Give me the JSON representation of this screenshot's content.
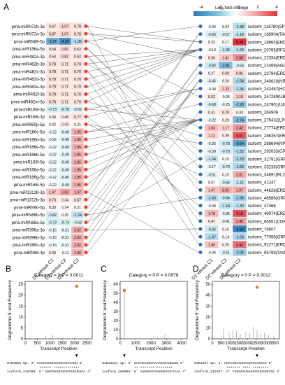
{
  "panel_a": {
    "letter": "A",
    "legend_title": "Log₂fold-change",
    "legend_ticks": [
      "-4",
      "-2",
      "0",
      "2",
      "4"
    ],
    "col_labels": [
      "D1 versus C1",
      "D2 versus C2",
      "D3 versus C3"
    ],
    "left_rows": [
      {
        "name": "pma-miRN72b-3p",
        "v": [
          "0.67",
          "1.07",
          "0.78"
        ]
      },
      {
        "name": "pma-miRN72a-3p",
        "v": [
          "0.87",
          "1.07",
          "0.78"
        ]
      },
      {
        "name": "pma-miRN89-5p",
        "v": [
          "-3.24",
          "-4.24",
          "-1.36"
        ]
      },
      {
        "name": "pma-miR156a-5p",
        "v": [
          "0.54",
          "0.82",
          "0.62"
        ]
      },
      {
        "name": "pma-miR482a-3p",
        "v": [
          "0.54",
          "0.82",
          "0.62"
        ]
      },
      {
        "name": "pma-miR482b-3p",
        "v": [
          "0.78",
          "0.71",
          "0.70"
        ]
      },
      {
        "name": "pma-miR482c-3p",
        "v": [
          "0.78",
          "0.71",
          "0.70"
        ]
      },
      {
        "name": "pma-miR482d-3p",
        "v": [
          "0.78",
          "0.71",
          "0.70"
        ]
      },
      {
        "name": "pma-miR482e-3p",
        "v": [
          "0.78",
          "0.71",
          "0.70"
        ]
      },
      {
        "name": "pma-miR482f-3p",
        "v": [
          "0.78",
          "0.71",
          "0.70"
        ]
      },
      {
        "name": "pma-miR482m-3p",
        "v": [
          "0.78",
          "0.71",
          "0.70"
        ]
      },
      {
        "name": "pma-miR166i-3p",
        "v": [
          "-0.73",
          "-0.78",
          "-0.55"
        ]
      },
      {
        "name": "pma-miR166l-3p",
        "v": [
          "0.34",
          "0.48",
          "0.77"
        ]
      },
      {
        "name": "pma-miR950p-5p",
        "v": [
          "0.02",
          "0.43",
          "0.21"
        ]
      },
      {
        "name": "pma-miR166c-5p",
        "v": [
          "-0.22",
          "-0.49",
          "1.95"
        ]
      },
      {
        "name": "pma-miR166d-3p",
        "v": [
          "-0.22",
          "-0.49",
          "1.95"
        ]
      },
      {
        "name": "pma-miR166e-5p",
        "v": [
          "-0.22",
          "-0.49",
          "1.95"
        ]
      },
      {
        "name": "pma-miR166b-5p",
        "v": [
          "-0.22",
          "-0.49",
          "1.95"
        ]
      },
      {
        "name": "pma-miR166f-5p",
        "v": [
          "-0.22",
          "-0.49",
          "1.95"
        ]
      },
      {
        "name": "pma-miR166a-5p",
        "v": [
          "-0.22",
          "-0.49",
          "1.95"
        ]
      },
      {
        "name": "pma-miR166g-5p",
        "v": [
          "-0.22",
          "-0.49",
          "1.95"
        ]
      },
      {
        "name": "pma-miR166i-5p",
        "v": [
          "-0.22",
          "-0.49",
          "1.95"
        ]
      },
      {
        "name": "pma-miR1312b-3p",
        "v": [
          "1.47",
          "2.02",
          "1.97"
        ]
      },
      {
        "name": "pma-miR1312b-3p",
        "v": [
          "0.73",
          "0.34",
          "0.67"
        ]
      },
      {
        "name": "pma-miRN90-5p",
        "v": [
          "0.33",
          "0.14",
          "0.21"
        ]
      },
      {
        "name": "pma-miRN88b-5p",
        "v": [
          "-0.82",
          "0.25",
          "-1.24"
        ]
      },
      {
        "name": "pma-miRN88a-5p",
        "v": [
          "-0.73",
          "-0.74",
          "-0.58"
        ]
      },
      {
        "name": "pma-miR396a-3p",
        "v": [
          "-0.16",
          "-0.31",
          "2.02"
        ]
      },
      {
        "name": "pma-miR396b-3p",
        "v": [
          "-0.16",
          "-0.31",
          "2.02"
        ]
      },
      {
        "name": "pma-miR396c-3p",
        "v": [
          "-0.16",
          "-0.31",
          "2.02"
        ]
      },
      {
        "name": "pma-miRN88-3p",
        "v": [
          "0.30",
          "-0.11",
          "1.90"
        ]
      }
    ],
    "right_rows": [
      {
        "v": [
          "-0.04",
          "0.04",
          "-1.38"
        ],
        "name": "isoform_118780",
        "gene": "SPL12"
      },
      {
        "v": [
          "-0.65",
          "-0.57",
          "-1.18"
        ],
        "name": "isoform_166904",
        "gene": "TAO1"
      },
      {
        "v": [
          "0.22",
          "0.17",
          "5.34"
        ],
        "name": "isoform_18964",
        "gene": "ERD10"
      },
      {
        "v": [
          "-0.13",
          "-1.05",
          "-1.20"
        ],
        "name": "isoform_20765",
        "gene": "RFI2"
      },
      {
        "v": [
          "0.56",
          "1.41",
          "2.68"
        ],
        "name": "isoform_22334",
        "gene": "ERD10"
      },
      {
        "v": [
          "-0.92",
          "-2.81",
          "-0.53"
        ],
        "name": "isoform_22469",
        "gene": "AGCT"
      },
      {
        "v": [
          "0.27",
          "0.60",
          "0.86"
        ],
        "name": "isoform_23794",
        "gene": "ERD10"
      },
      {
        "v": [
          "-0.45",
          "0.26",
          "-1.54"
        ],
        "name": "isoform_240620",
        "gene": "NRAMP1"
      },
      {
        "v": [
          "-0.08",
          "1.23",
          "-1.34"
        ],
        "name": "isoform_242457",
        "gene": "HOX32"
      },
      {
        "v": [
          "0.52",
          "-0.04",
          "1.15"
        ],
        "name": "isoform_247289",
        "gene": "UBI1P"
      },
      {
        "v": [
          "-0.68",
          "-0.25",
          "-2.28"
        ],
        "name": "isoform_247901",
        "gene": "U86A2"
      },
      {
        "v": [
          "0.41",
          "0.70",
          "0.33"
        ],
        "name": "isoform_264908",
        "gene": ""
      },
      {
        "v": [
          "-0.22",
          "0.29",
          "-2.74"
        ],
        "name": "isoform_275432",
        "gene": "LPR2"
      },
      {
        "v": [
          "1.63",
          "1.17",
          "2.42"
        ],
        "name": "isoform_27774",
        "gene": "ERD10"
      },
      {
        "v": [
          "1.12",
          "0.39",
          "4.01"
        ],
        "name": "isoform_286357",
        "gene": "ERD10"
      },
      {
        "v": [
          "-0.26",
          "-0.79",
          "-3.54"
        ],
        "name": "isoform_288694",
        "gene": "NPF5.3"
      },
      {
        "v": [
          "-0.39",
          "-0.79",
          "-1.52"
        ],
        "name": "isoform_292633",
        "gene": "GRP2"
      },
      {
        "v": [
          "-1.04",
          "0.15",
          "-1.70"
        ],
        "name": "isoform_32791",
        "gene": "GRP2"
      },
      {
        "v": [
          "-0.17",
          "-0.70",
          "-1.60"
        ],
        "name": "isoform_33236",
        "gene": "GRP1"
      },
      {
        "v": [
          "-0.51",
          "0.15",
          "2.01"
        ],
        "name": "isoform_34691",
        "gene": "RL222"
      },
      {
        "v": [
          "0.07",
          "-0.66",
          "-1.11"
        ],
        "name": "isoform_41247",
        "gene": ""
      },
      {
        "v": [
          "1.47",
          "2.02",
          "1.97"
        ],
        "name": "isoform_44628",
        "gene": "ERD10"
      },
      {
        "v": [
          "-1.43",
          "-0.84",
          "-1.96"
        ],
        "name": "isoform_46586",
        "gene": "GRP2"
      },
      {
        "v": [
          "-0.09",
          "-1.18",
          "-1.30"
        ],
        "name": "isoform_47466",
        "gene": ""
      },
      {
        "v": [
          "1.70",
          "-0.35",
          "4.18"
        ],
        "name": "isoform_49974",
        "gene": "ERD10"
      },
      {
        "v": [
          "0.47",
          "-0.41",
          "2.40"
        ],
        "name": "isoform_66551",
        "gene": "CDR47"
      },
      {
        "v": [
          "-0.92",
          "0.10",
          "-4.60"
        ],
        "name": "isoform_76607",
        "gene": ""
      },
      {
        "v": [
          "-1.47",
          "0.14",
          "-1.63"
        ],
        "name": "isoform_77096",
        "gene": "GRP2"
      },
      {
        "v": [
          "1.46",
          "0.25",
          "3.43"
        ],
        "name": "isoform_92271",
        "gene": "ERD10"
      },
      {
        "v": [
          "-0.04",
          "-0.51",
          "-2.04"
        ],
        "name": "isoform_95799",
        "gene": "TAO1"
      }
    ]
  },
  "degradome": [
    {
      "letter": "B",
      "category": "Category = 0",
      "pval": "P = 0.0011",
      "ylabel": "Degradome 5' end Frequency",
      "xlabel": "Transcript Position",
      "yticks": [
        "0",
        "5",
        "10",
        "15",
        "20",
        "25"
      ],
      "xticks": [
        "0",
        "500",
        "1000",
        "1500",
        "2000",
        "2500"
      ],
      "mirna_line": "miR156a-5p: 3' CACGAGUGAGAGAAGACAGU 5'",
      "target_line": "isoform_118780: 5' GUGCUCUCUCUCUUCUGUCA 3'",
      "dots": "•••••• •••••••••••••"
    },
    {
      "letter": "C",
      "category": "Category = 0",
      "pval": "P = 0.0978",
      "ylabel": "Degradome 5' end Frequency",
      "xlabel": "Transcript Position",
      "yticks": [
        "0",
        "10",
        "20",
        "30",
        "40",
        "50",
        "60"
      ],
      "xticks": [
        "0",
        "1000",
        "2000",
        "3000",
        "4000"
      ],
      "mirna_line": "miR1312c-3p: 3' UACACCGGUAAAAGAGAGGUUU 5'",
      "target_line": "isoform_166904: 5' AUUUGCCAUUUUUCUCCAAA 3'",
      "dots": "•• ••••••• ••••••••"
    },
    {
      "letter": "D",
      "category": "Category = 0",
      "pval": "P = 0.0012",
      "ylabel": "Degradome 5' end Frequency",
      "xlabel": "Transcript Position",
      "yticks": [
        "0",
        "10",
        "20",
        "30",
        "40",
        "50"
      ],
      "xticks": [
        "0",
        "500",
        "1000",
        "1500",
        "2000",
        "2500",
        "3000",
        "3500"
      ],
      "mirna_line": "miR166l-3p: 3' CUCCUUACUUCGGACCAGGCU 5'",
      "target_line": "isoform_242457: 5' CUGGGAUGAAGCCUGGUCCGG 3'",
      "dots": "••••••• •••• ••••••••"
    }
  ]
}
